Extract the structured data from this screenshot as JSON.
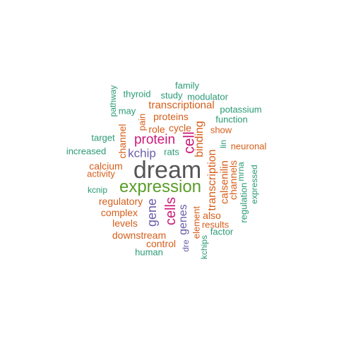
{
  "palette": {
    "dark": "#555555",
    "green": "#5a9c2a",
    "magenta": "#cc1a7a",
    "purple": "#6c5cab",
    "orange": "#d65e1a",
    "teal": "#2a9a76"
  },
  "words": [
    {
      "text": "dream",
      "color": "#555555"
    },
    {
      "text": "expression",
      "color": "#5a9c2a"
    },
    {
      "text": "protein",
      "color": "#cc1a7a"
    },
    {
      "text": "cell",
      "color": "#cc1a7a"
    },
    {
      "text": "cells",
      "color": "#cc1a7a"
    },
    {
      "text": "kchip",
      "color": "#6c5cab"
    },
    {
      "text": "gene",
      "color": "#6c5cab"
    },
    {
      "text": "genes",
      "color": "#6c5cab"
    },
    {
      "text": "dre",
      "color": "#6c5cab"
    },
    {
      "text": "binding",
      "color": "#d65e1a"
    },
    {
      "text": "transcription",
      "color": "#d65e1a"
    },
    {
      "text": "calsenilin",
      "color": "#d65e1a"
    },
    {
      "text": "transcriptional",
      "color": "#d65e1a"
    },
    {
      "text": "proteins",
      "color": "#d65e1a"
    },
    {
      "text": "cycle",
      "color": "#d65e1a"
    },
    {
      "text": "role",
      "color": "#d65e1a"
    },
    {
      "text": "pain",
      "color": "#d65e1a"
    },
    {
      "text": "channel",
      "color": "#d65e1a"
    },
    {
      "text": "show",
      "color": "#d65e1a"
    },
    {
      "text": "neuronal",
      "color": "#d65e1a"
    },
    {
      "text": "channels",
      "color": "#d65e1a"
    },
    {
      "text": "calcium",
      "color": "#d65e1a"
    },
    {
      "text": "activity",
      "color": "#d65e1a"
    },
    {
      "text": "regulatory",
      "color": "#d65e1a"
    },
    {
      "text": "complex",
      "color": "#d65e1a"
    },
    {
      "text": "levels",
      "color": "#d65e1a"
    },
    {
      "text": "downstream",
      "color": "#d65e1a"
    },
    {
      "text": "control",
      "color": "#d65e1a"
    },
    {
      "text": "also",
      "color": "#d65e1a"
    },
    {
      "text": "results",
      "color": "#d65e1a"
    },
    {
      "text": "element",
      "color": "#d65e1a"
    },
    {
      "text": "family",
      "color": "#2a9a76"
    },
    {
      "text": "thyroid",
      "color": "#2a9a76"
    },
    {
      "text": "study",
      "color": "#2a9a76"
    },
    {
      "text": "modulator",
      "color": "#2a9a76"
    },
    {
      "text": "pathway",
      "color": "#2a9a76"
    },
    {
      "text": "may",
      "color": "#2a9a76"
    },
    {
      "text": "potassium",
      "color": "#2a9a76"
    },
    {
      "text": "function",
      "color": "#2a9a76"
    },
    {
      "text": "target",
      "color": "#2a9a76"
    },
    {
      "text": "increased",
      "color": "#2a9a76"
    },
    {
      "text": "rats",
      "color": "#2a9a76"
    },
    {
      "text": "lin",
      "color": "#2a9a76"
    },
    {
      "text": "mrna",
      "color": "#2a9a76"
    },
    {
      "text": "expressed",
      "color": "#2a9a76"
    },
    {
      "text": "regulation",
      "color": "#2a9a76"
    },
    {
      "text": "kcnip",
      "color": "#2a9a76"
    },
    {
      "text": "factor",
      "color": "#2a9a76"
    },
    {
      "text": "kchips",
      "color": "#2a9a76"
    },
    {
      "text": "human",
      "color": "#2a9a76"
    }
  ]
}
